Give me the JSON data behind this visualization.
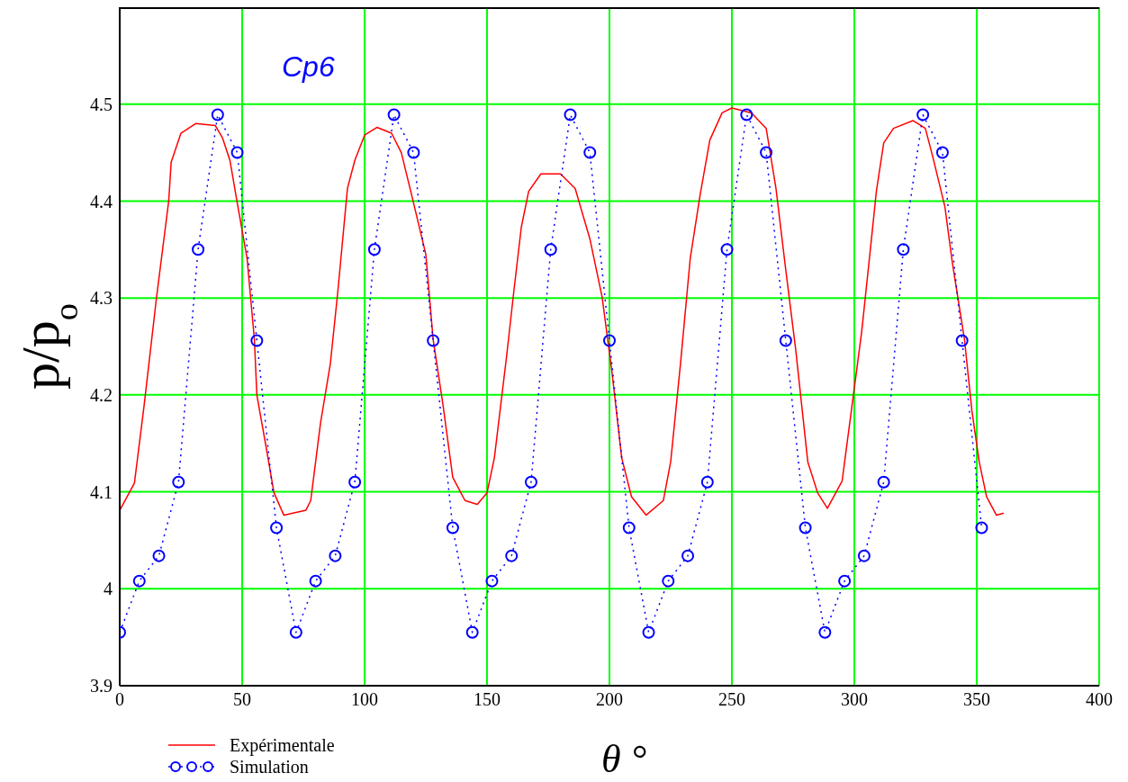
{
  "chart_data": {
    "type": "line",
    "xlabel": "θ °",
    "ylabel": "p/p$_{o}$",
    "annotations": [
      "Cp6"
    ],
    "xlim": [
      0,
      400
    ],
    "xticks": [
      0,
      50,
      100,
      150,
      200,
      250,
      300,
      350,
      400
    ],
    "ylim": [
      3.9,
      4.6
    ],
    "yticks": [
      3.9,
      4,
      4.1,
      4.2,
      4.3,
      4.4,
      4.5
    ],
    "grid": true,
    "legend": "bottom left",
    "series": [
      {
        "name": "Expérimentale",
        "color": "#ff0000",
        "marker": "none",
        "line_style": "solid",
        "x": [
          0,
          6,
          10,
          15,
          20,
          21,
          25,
          31,
          39,
          42,
          45,
          48,
          52,
          55,
          56,
          60,
          63,
          67,
          76,
          78,
          82,
          86,
          89,
          93,
          96,
          100,
          105,
          111,
          115,
          120,
          125,
          128,
          132,
          136,
          141,
          146,
          150,
          153,
          158,
          161,
          164,
          167,
          172,
          180,
          186,
          192,
          197,
          201,
          205,
          209,
          215,
          222,
          225,
          229,
          233,
          237,
          241,
          246,
          250,
          258,
          264,
          268,
          272,
          276,
          281,
          285,
          289,
          295,
          299,
          303,
          307,
          309,
          312,
          316,
          324,
          329,
          332,
          337,
          340,
          345,
          348,
          351,
          354,
          358,
          361
        ],
        "values": [
          4.081,
          4.109,
          4.19,
          4.3,
          4.4,
          4.44,
          4.47,
          4.48,
          4.478,
          4.465,
          4.442,
          4.398,
          4.341,
          4.257,
          4.2,
          4.143,
          4.099,
          4.076,
          4.081,
          4.091,
          4.171,
          4.232,
          4.305,
          4.413,
          4.442,
          4.468,
          4.476,
          4.47,
          4.45,
          4.398,
          4.345,
          4.257,
          4.19,
          4.115,
          4.091,
          4.087,
          4.099,
          4.135,
          4.24,
          4.308,
          4.373,
          4.41,
          4.428,
          4.428,
          4.413,
          4.361,
          4.301,
          4.224,
          4.135,
          4.095,
          4.076,
          4.091,
          4.131,
          4.232,
          4.341,
          4.406,
          4.463,
          4.491,
          4.496,
          4.491,
          4.475,
          4.413,
          4.329,
          4.248,
          4.131,
          4.099,
          4.083,
          4.111,
          4.188,
          4.265,
          4.361,
          4.41,
          4.46,
          4.475,
          4.483,
          4.475,
          4.446,
          4.394,
          4.337,
          4.257,
          4.184,
          4.131,
          4.095,
          4.076,
          4.078
        ]
      },
      {
        "name": "Simulation",
        "color": "#0000ff",
        "marker": "circle",
        "line_style": "dotted",
        "x": [
          0,
          8,
          16,
          24,
          32,
          40,
          48,
          56,
          64,
          72,
          80,
          88,
          96,
          104,
          112,
          120,
          128,
          136,
          144,
          152,
          160,
          168,
          176,
          184,
          192,
          200,
          208,
          216,
          224,
          232,
          240,
          248,
          256,
          264,
          272,
          280,
          288,
          296,
          304,
          312,
          320,
          328,
          336,
          344,
          352
        ],
        "values": [
          3.955,
          4.008,
          4.034,
          4.11,
          4.35,
          4.489,
          4.45,
          4.256,
          4.063,
          3.955,
          4.008,
          4.034,
          4.11,
          4.35,
          4.489,
          4.45,
          4.256,
          4.063,
          3.955,
          4.008,
          4.034,
          4.11,
          4.35,
          4.489,
          4.45,
          4.256,
          4.063,
          3.955,
          4.008,
          4.034,
          4.11,
          4.35,
          4.489,
          4.45,
          4.256,
          4.063,
          3.955,
          4.008,
          4.034,
          4.11,
          4.35,
          4.489,
          4.45,
          4.256,
          4.063
        ]
      }
    ]
  }
}
